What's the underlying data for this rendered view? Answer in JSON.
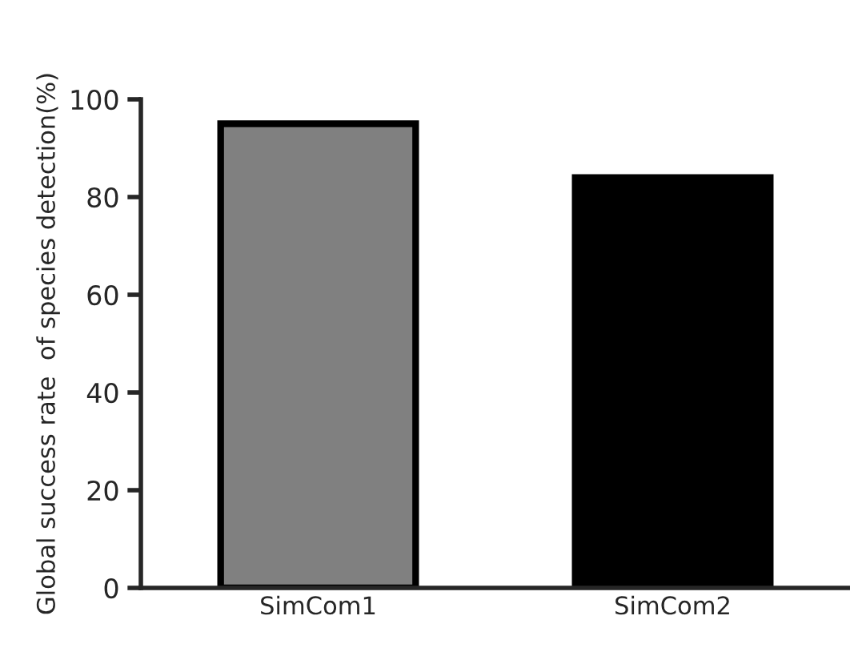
{
  "chart_data": {
    "type": "bar",
    "ylabel": "Global success rate  of species detection(%)",
    "categories": [
      "SimCom1",
      "SimCom2"
    ],
    "values": [
      95,
      84
    ],
    "colors": [
      "#808080",
      "#000000"
    ],
    "ylim": [
      0,
      100
    ],
    "yticks": [
      0,
      20,
      40,
      60,
      80,
      100
    ],
    "grid": false
  }
}
